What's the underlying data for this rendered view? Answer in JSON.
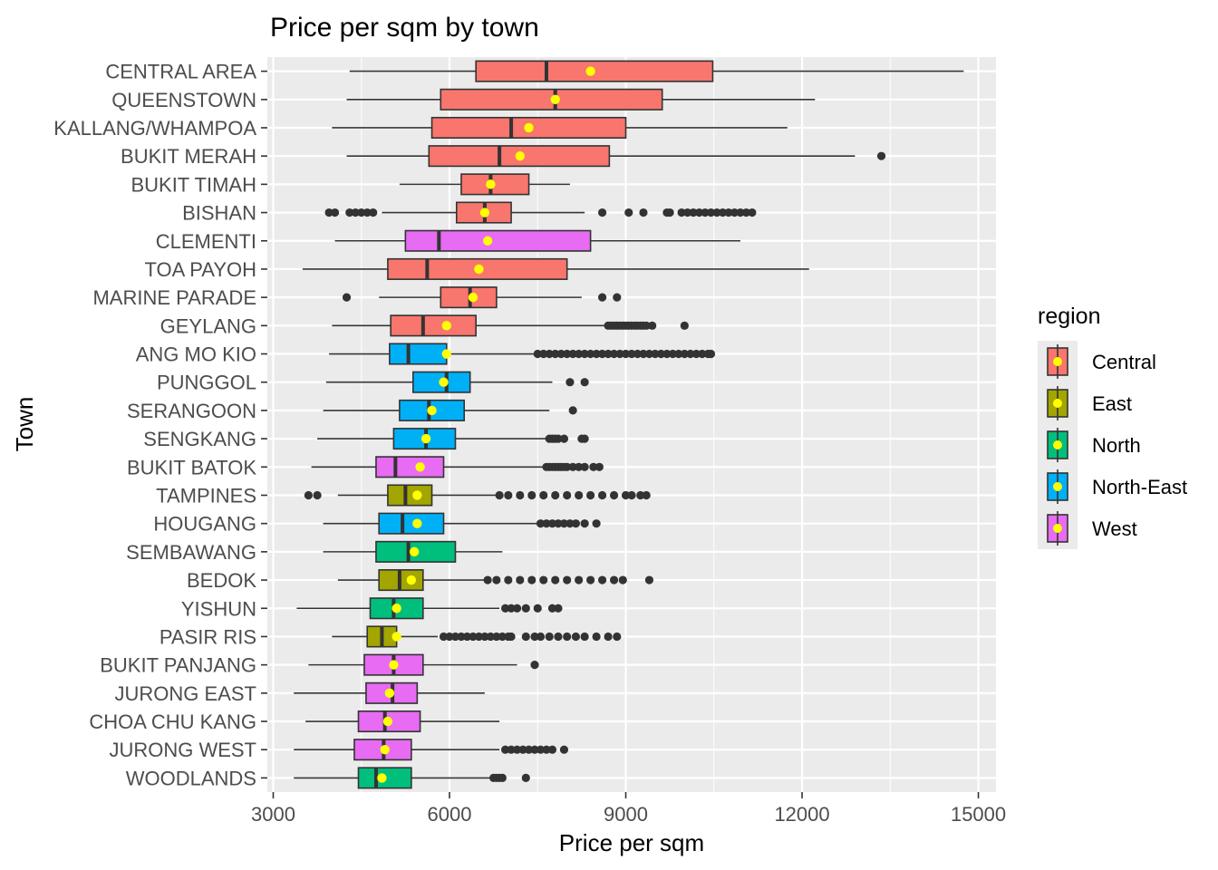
{
  "chart_data": {
    "type": "boxplot",
    "title": "Price per sqm by town",
    "xlabel": "Price per sqm",
    "ylabel": "Town",
    "xlim": [
      2900,
      15300
    ],
    "xticks": [
      3000,
      6000,
      9000,
      12000,
      15000
    ],
    "xtick_labels": [
      "3000",
      "6000",
      "9000",
      "12000",
      "15000"
    ],
    "grid": true,
    "orientation": "horizontal",
    "mean_marker_color": "#FFFF00",
    "legend": {
      "title": "region",
      "placement": "right",
      "entries": [
        {
          "name": "Central",
          "color": "#F8766D"
        },
        {
          "name": "East",
          "color": "#A3A500"
        },
        {
          "name": "North",
          "color": "#00BF7D"
        },
        {
          "name": "North-East",
          "color": "#00B0F6"
        },
        {
          "name": "West",
          "color": "#E76BF3"
        }
      ]
    },
    "towns": [
      {
        "name": "CENTRAL AREA",
        "region": "Central",
        "whisker_low": 4300,
        "q1": 6450,
        "median": 7650,
        "q3": 10480,
        "whisker_high": 14750,
        "mean": 8400,
        "outliers": []
      },
      {
        "name": "QUEENSTOWN",
        "region": "Central",
        "whisker_low": 4250,
        "q1": 5850,
        "median": 7800,
        "q3": 9620,
        "whisker_high": 12220,
        "mean": 7800,
        "outliers": []
      },
      {
        "name": "KALLANG/WHAMPOA",
        "region": "Central",
        "whisker_low": 4000,
        "q1": 5700,
        "median": 7050,
        "q3": 9000,
        "whisker_high": 11750,
        "mean": 7350,
        "outliers": []
      },
      {
        "name": "BUKIT MERAH",
        "region": "Central",
        "whisker_low": 4250,
        "q1": 5650,
        "median": 6850,
        "q3": 8720,
        "whisker_high": 12900,
        "mean": 7200,
        "outliers": [
          13350
        ]
      },
      {
        "name": "BUKIT TIMAH",
        "region": "Central",
        "whisker_low": 5150,
        "q1": 6200,
        "median": 6700,
        "q3": 7350,
        "whisker_high": 8050,
        "mean": 6700,
        "outliers": []
      },
      {
        "name": "BISHAN",
        "region": "Central",
        "whisker_low": 4850,
        "q1": 6120,
        "median": 6600,
        "q3": 7050,
        "whisker_high": 8300,
        "mean": 6600,
        "outliers": [
          3950,
          4050,
          4300,
          4400,
          4500,
          4600,
          4700,
          8600,
          9050,
          9300,
          9700,
          9750,
          9950,
          10050,
          10150,
          10250,
          10350,
          10450,
          10550,
          10650,
          10750,
          10850,
          10950,
          11050,
          11150
        ]
      },
      {
        "name": "CLEMENTI",
        "region": "West",
        "whisker_low": 4050,
        "q1": 5250,
        "median": 5820,
        "q3": 8400,
        "whisker_high": 10950,
        "mean": 6650,
        "outliers": []
      },
      {
        "name": "TOA PAYOH",
        "region": "Central",
        "whisker_low": 3500,
        "q1": 4950,
        "median": 5620,
        "q3": 8000,
        "whisker_high": 12120,
        "mean": 6500,
        "outliers": []
      },
      {
        "name": "MARINE PARADE",
        "region": "Central",
        "whisker_low": 4800,
        "q1": 5850,
        "median": 6350,
        "q3": 6800,
        "whisker_high": 8250,
        "mean": 6400,
        "outliers": [
          4250,
          8600,
          8850
        ]
      },
      {
        "name": "GEYLANG",
        "region": "Central",
        "whisker_low": 4000,
        "q1": 5000,
        "median": 5550,
        "q3": 6450,
        "whisker_high": 8650,
        "mean": 5950,
        "outliers": [
          8700,
          8750,
          8800,
          8850,
          8900,
          8950,
          9000,
          9050,
          9100,
          9150,
          9200,
          9250,
          9300,
          9350,
          9450,
          10000
        ]
      },
      {
        "name": "ANG MO KIO",
        "region": "North-East",
        "whisker_low": 3950,
        "q1": 4980,
        "median": 5300,
        "q3": 5950,
        "whisker_high": 7450,
        "mean": 5950,
        "outliers": [
          7500,
          7600,
          7700,
          7800,
          7900,
          8000,
          8100,
          8200,
          8300,
          8400,
          8500,
          8600,
          8700,
          8800,
          8900,
          9000,
          9100,
          9200,
          9300,
          9400,
          9500,
          9600,
          9700,
          9800,
          9900,
          10000,
          10100,
          10200,
          10300,
          10400,
          10450
        ]
      },
      {
        "name": "PUNGGOL",
        "region": "North-East",
        "whisker_low": 3900,
        "q1": 5380,
        "median": 5950,
        "q3": 6350,
        "whisker_high": 7750,
        "mean": 5900,
        "outliers": [
          8050,
          8300
        ]
      },
      {
        "name": "SERANGOON",
        "region": "North-East",
        "whisker_low": 3850,
        "q1": 5150,
        "median": 5650,
        "q3": 6250,
        "whisker_high": 7700,
        "mean": 5700,
        "outliers": [
          8100
        ]
      },
      {
        "name": "SENGKANG",
        "region": "North-East",
        "whisker_low": 3750,
        "q1": 5050,
        "median": 5600,
        "q3": 6100,
        "whisker_high": 7650,
        "mean": 5600,
        "outliers": [
          7700,
          7750,
          7800,
          7850,
          7950,
          8250,
          8300
        ]
      },
      {
        "name": "BUKIT BATOK",
        "region": "West",
        "whisker_low": 3650,
        "q1": 4750,
        "median": 5080,
        "q3": 5900,
        "whisker_high": 7600,
        "mean": 5500,
        "outliers": [
          7650,
          7700,
          7750,
          7800,
          7850,
          7900,
          7950,
          8000,
          8100,
          8200,
          8300,
          8450,
          8550
        ]
      },
      {
        "name": "TAMPINES",
        "region": "East",
        "whisker_low": 4100,
        "q1": 4950,
        "median": 5250,
        "q3": 5700,
        "whisker_high": 6800,
        "mean": 5450,
        "outliers": [
          3600,
          3750,
          6850,
          7000,
          7200,
          7400,
          7600,
          7800,
          8000,
          8200,
          8400,
          8600,
          8800,
          9000,
          9100,
          9250,
          9350
        ]
      },
      {
        "name": "HOUGANG",
        "region": "North-East",
        "whisker_low": 3850,
        "q1": 4800,
        "median": 5200,
        "q3": 5900,
        "whisker_high": 7500,
        "mean": 5450,
        "outliers": [
          7550,
          7650,
          7750,
          7850,
          7950,
          8050,
          8150,
          8300,
          8500
        ]
      },
      {
        "name": "SEMBAWANG",
        "region": "North",
        "whisker_low": 3850,
        "q1": 4750,
        "median": 5300,
        "q3": 6100,
        "whisker_high": 6900,
        "mean": 5400,
        "outliers": []
      },
      {
        "name": "BEDOK",
        "region": "East",
        "whisker_low": 4100,
        "q1": 4800,
        "median": 5150,
        "q3": 5550,
        "whisker_high": 6600,
        "mean": 5350,
        "outliers": [
          6650,
          6800,
          7000,
          7200,
          7400,
          7600,
          7800,
          8000,
          8200,
          8400,
          8600,
          8800,
          8950,
          9400
        ]
      },
      {
        "name": "YISHUN",
        "region": "North",
        "whisker_low": 3400,
        "q1": 4650,
        "median": 5050,
        "q3": 5550,
        "whisker_high": 6850,
        "mean": 5100,
        "outliers": [
          6950,
          7050,
          7150,
          7300,
          7500,
          7750,
          7850
        ]
      },
      {
        "name": "PASIR RIS",
        "region": "East",
        "whisker_low": 4000,
        "q1": 4600,
        "median": 4850,
        "q3": 5100,
        "whisker_high": 5800,
        "mean": 5100,
        "outliers": [
          5900,
          6000,
          6100,
          6200,
          6300,
          6400,
          6500,
          6600,
          6700,
          6800,
          6900,
          7000,
          7050,
          7300,
          7450,
          7550,
          7700,
          7850,
          8000,
          8150,
          8300,
          8500,
          8700,
          8850
        ]
      },
      {
        "name": "BUKIT PANJANG",
        "region": "West",
        "whisker_low": 3600,
        "q1": 4550,
        "median": 5050,
        "q3": 5550,
        "whisker_high": 7150,
        "mean": 5050,
        "outliers": [
          7450
        ]
      },
      {
        "name": "JURONG EAST",
        "region": "West",
        "whisker_low": 3350,
        "q1": 4580,
        "median": 5030,
        "q3": 5450,
        "whisker_high": 6600,
        "mean": 4980,
        "outliers": []
      },
      {
        "name": "CHOA CHU KANG",
        "region": "West",
        "whisker_low": 3550,
        "q1": 4450,
        "median": 4900,
        "q3": 5500,
        "whisker_high": 6850,
        "mean": 4950,
        "outliers": []
      },
      {
        "name": "JURONG WEST",
        "region": "West",
        "whisker_low": 3350,
        "q1": 4380,
        "median": 4880,
        "q3": 5350,
        "whisker_high": 6850,
        "mean": 4900,
        "outliers": [
          6950,
          7050,
          7150,
          7250,
          7350,
          7450,
          7550,
          7650,
          7750,
          7950
        ]
      },
      {
        "name": "WOODLANDS",
        "region": "North",
        "whisker_low": 3350,
        "q1": 4450,
        "median": 4750,
        "q3": 5350,
        "whisker_high": 6700,
        "mean": 4850,
        "outliers": [
          6750,
          6800,
          6850,
          6900,
          7300
        ]
      }
    ]
  }
}
